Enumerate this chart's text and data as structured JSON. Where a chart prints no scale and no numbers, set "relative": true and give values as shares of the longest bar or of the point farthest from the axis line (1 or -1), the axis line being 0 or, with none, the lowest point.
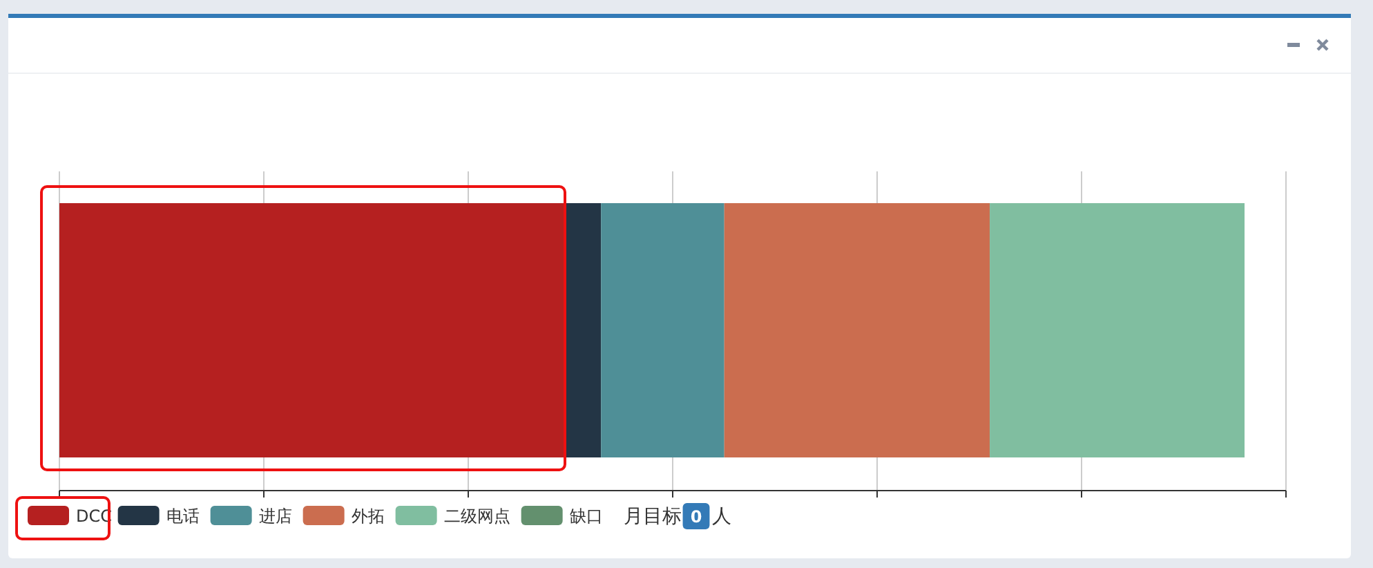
{
  "chart_data": {
    "type": "bar",
    "orientation": "horizontal",
    "stacked": true,
    "relative": true,
    "categories": [
      null
    ],
    "series": [
      {
        "name": "DCC",
        "color": "#b52020",
        "values": [
          0.427
        ]
      },
      {
        "name": "电话",
        "color": "#233545",
        "values": [
          0.03
        ]
      },
      {
        "name": "进店",
        "color": "#4f8f97",
        "values": [
          0.104
        ]
      },
      {
        "name": "外拓",
        "color": "#cb6d4f",
        "values": [
          0.224
        ]
      },
      {
        "name": "二级网点",
        "color": "#80bea0",
        "values": [
          0.215
        ]
      },
      {
        "name": "缺口",
        "color": "#63906e",
        "values": [
          0
        ]
      }
    ],
    "grid": "x",
    "legend": "bottom left",
    "annotations": [
      "月目标",
      "0",
      "人"
    ]
  }
}
